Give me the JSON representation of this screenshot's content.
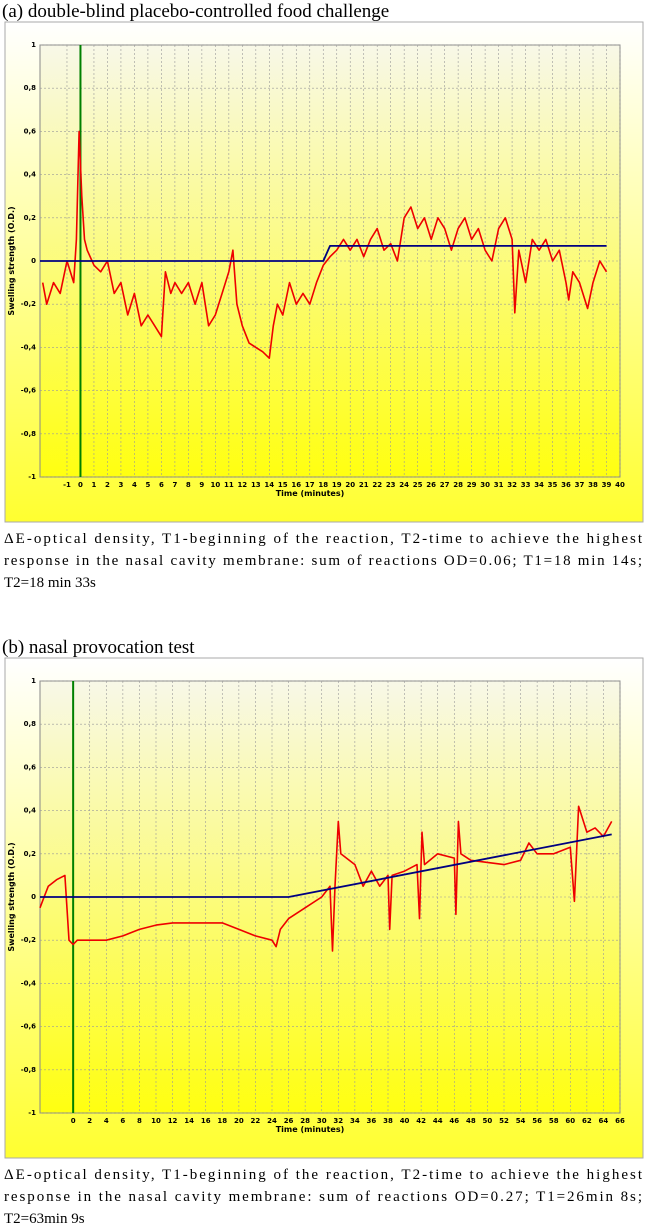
{
  "chart_data": [
    {
      "type": "line",
      "title": "(a) double-blind placebo-controlled food challenge",
      "x_label": "Time (minutes)",
      "y_label": "Swelling strength (O.D.)",
      "caption": [
        "ΔE-optical density, T1-beginning of the reaction, T2-time to achieve the highest",
        "response in the nasal cavity membrane: sum of reactions OD=0.06; T1=18 min 14s;",
        "T2=18 min 33s"
      ],
      "xlim": [
        -3,
        40
      ],
      "ylim": [
        -1,
        1
      ],
      "xticks": [
        -1,
        0,
        1,
        2,
        3,
        4,
        5,
        6,
        7,
        8,
        9,
        10,
        11,
        12,
        13,
        14,
        15,
        16,
        17,
        18,
        19,
        20,
        21,
        22,
        23,
        24,
        25,
        26,
        27,
        28,
        29,
        30,
        31,
        32,
        33,
        34,
        35,
        36,
        37,
        38,
        39,
        40
      ],
      "yticks": [
        -1,
        {
          "value": -0.8,
          "label": "-0,8"
        },
        {
          "value": -0.6,
          "label": "-0,6"
        },
        {
          "value": -0.4,
          "label": "-0,4"
        },
        {
          "value": -0.2,
          "label": "-0,2"
        },
        0,
        {
          "value": 0.2,
          "label": "0,2"
        },
        {
          "value": 0.4,
          "label": "0,4"
        },
        {
          "value": 0.6,
          "label": "0,6"
        },
        {
          "value": 0.8,
          "label": "0,8"
        },
        1
      ],
      "grid": true,
      "vline": {
        "x": 0,
        "color": "#008000"
      },
      "series": [
        {
          "color": "#ee0000",
          "x": [
            -2.8,
            -2.5,
            -2,
            -1.5,
            -1,
            -0.5,
            -0.3,
            -0.1,
            0.1,
            0.3,
            0.5,
            1,
            1.5,
            2,
            2.5,
            3,
            3.5,
            4,
            4.5,
            5,
            5.5,
            6,
            6.3,
            6.7,
            7,
            7.5,
            8,
            8.5,
            9,
            9.5,
            10,
            10.5,
            11,
            11.3,
            11.6,
            12,
            12.5,
            13,
            13.5,
            14,
            14.3,
            14.6,
            15,
            15.5,
            16,
            16.5,
            17,
            17.5,
            18,
            18.5,
            19,
            19.5,
            20,
            20.5,
            21,
            21.5,
            22,
            22.5,
            23,
            23.5,
            24,
            24.5,
            25,
            25.5,
            26,
            26.5,
            27,
            27.5,
            28,
            28.5,
            29,
            29.5,
            30,
            30.5,
            31,
            31.5,
            32,
            32.2,
            32.5,
            33,
            33.5,
            34,
            34.5,
            35,
            35.5,
            36,
            36.2,
            36.5,
            37,
            37.6,
            38,
            38.5,
            39
          ],
          "values": [
            -0.1,
            -0.2,
            -0.1,
            -0.15,
            0.0,
            -0.1,
            0.1,
            0.6,
            0.3,
            0.1,
            0.05,
            -0.02,
            -0.05,
            0.0,
            -0.15,
            -0.1,
            -0.25,
            -0.15,
            -0.3,
            -0.25,
            -0.3,
            -0.35,
            -0.05,
            -0.15,
            -0.1,
            -0.15,
            -0.1,
            -0.2,
            -0.1,
            -0.3,
            -0.25,
            -0.15,
            -0.05,
            0.05,
            -0.2,
            -0.3,
            -0.38,
            -0.4,
            -0.42,
            -0.45,
            -0.3,
            -0.2,
            -0.25,
            -0.1,
            -0.2,
            -0.15,
            -0.2,
            -0.1,
            -0.02,
            0.02,
            0.05,
            0.1,
            0.05,
            0.1,
            0.02,
            0.1,
            0.15,
            0.05,
            0.08,
            0.0,
            0.2,
            0.25,
            0.15,
            0.2,
            0.1,
            0.2,
            0.15,
            0.05,
            0.15,
            0.2,
            0.1,
            0.15,
            0.05,
            0.0,
            0.15,
            0.2,
            0.1,
            -0.24,
            0.05,
            -0.1,
            0.1,
            0.05,
            0.1,
            0.0,
            0.05,
            -0.1,
            -0.18,
            -0.05,
            -0.1,
            -0.22,
            -0.1,
            0.0,
            -0.05
          ]
        },
        {
          "color": "#000080",
          "x": [
            -3,
            18,
            18.5,
            39
          ],
          "values": [
            0,
            0,
            0.07,
            0.07
          ]
        }
      ]
    },
    {
      "type": "line",
      "title": "(b) nasal provocation test",
      "x_label": "Time (minutes)",
      "y_label": "Swelling strength (O.D.)",
      "caption": [
        "ΔE-optical density, T1-beginning of the reaction, T2-time to achieve the highest",
        "response in the nasal cavity membrane: sum of reactions OD=0.27; T1=26min 8s;",
        "T2=63min 9s"
      ],
      "xlim": [
        -4,
        66
      ],
      "ylim": [
        -1,
        1
      ],
      "xticks": [
        0,
        2,
        4,
        6,
        8,
        10,
        12,
        14,
        16,
        18,
        20,
        22,
        24,
        26,
        28,
        30,
        32,
        34,
        36,
        38,
        40,
        42,
        44,
        46,
        48,
        50,
        52,
        54,
        56,
        58,
        60,
        62,
        64,
        66
      ],
      "yticks": [
        -1,
        {
          "value": -0.8,
          "label": "-0,8"
        },
        {
          "value": -0.6,
          "label": "-0,6"
        },
        {
          "value": -0.4,
          "label": "-0,4"
        },
        {
          "value": -0.2,
          "label": "-0,2"
        },
        0,
        {
          "value": 0.2,
          "label": "0,2"
        },
        {
          "value": 0.4,
          "label": "0,4"
        },
        {
          "value": 0.6,
          "label": "0,6"
        },
        {
          "value": 0.8,
          "label": "0,8"
        },
        1
      ],
      "grid": true,
      "vline": {
        "x": 0,
        "color": "#008000"
      },
      "series": [
        {
          "color": "#ee0000",
          "x": [
            -4,
            -3.5,
            -3,
            -2,
            -1,
            -0.5,
            0,
            0.5,
            2,
            4,
            6,
            8,
            10,
            12,
            14,
            16,
            18,
            20,
            22,
            24,
            24.5,
            25,
            26,
            28,
            30,
            31,
            31.3,
            31.6,
            32,
            32.3,
            34,
            35,
            36,
            37,
            38,
            38.2,
            38.5,
            40,
            41.5,
            41.8,
            42.1,
            42.4,
            44,
            46,
            46.2,
            46.5,
            46.8,
            48,
            50,
            52,
            54,
            55,
            56,
            58,
            60,
            60.5,
            61,
            62,
            63,
            64,
            65
          ],
          "values": [
            -0.05,
            0.0,
            0.05,
            0.08,
            0.1,
            -0.2,
            -0.22,
            -0.2,
            -0.2,
            -0.2,
            -0.18,
            -0.15,
            -0.13,
            -0.12,
            -0.12,
            -0.12,
            -0.12,
            -0.15,
            -0.18,
            -0.2,
            -0.23,
            -0.15,
            -0.1,
            -0.05,
            0.0,
            0.05,
            -0.25,
            0.05,
            0.35,
            0.2,
            0.15,
            0.05,
            0.12,
            0.05,
            0.1,
            -0.15,
            0.1,
            0.12,
            0.15,
            -0.1,
            0.3,
            0.15,
            0.2,
            0.18,
            -0.08,
            0.35,
            0.2,
            0.17,
            0.16,
            0.15,
            0.17,
            0.25,
            0.2,
            0.2,
            0.23,
            -0.02,
            0.42,
            0.3,
            0.32,
            0.28,
            0.35
          ]
        },
        {
          "color": "#000080",
          "x": [
            -4,
            26,
            65
          ],
          "values": [
            0,
            0,
            0.29
          ]
        }
      ]
    }
  ]
}
